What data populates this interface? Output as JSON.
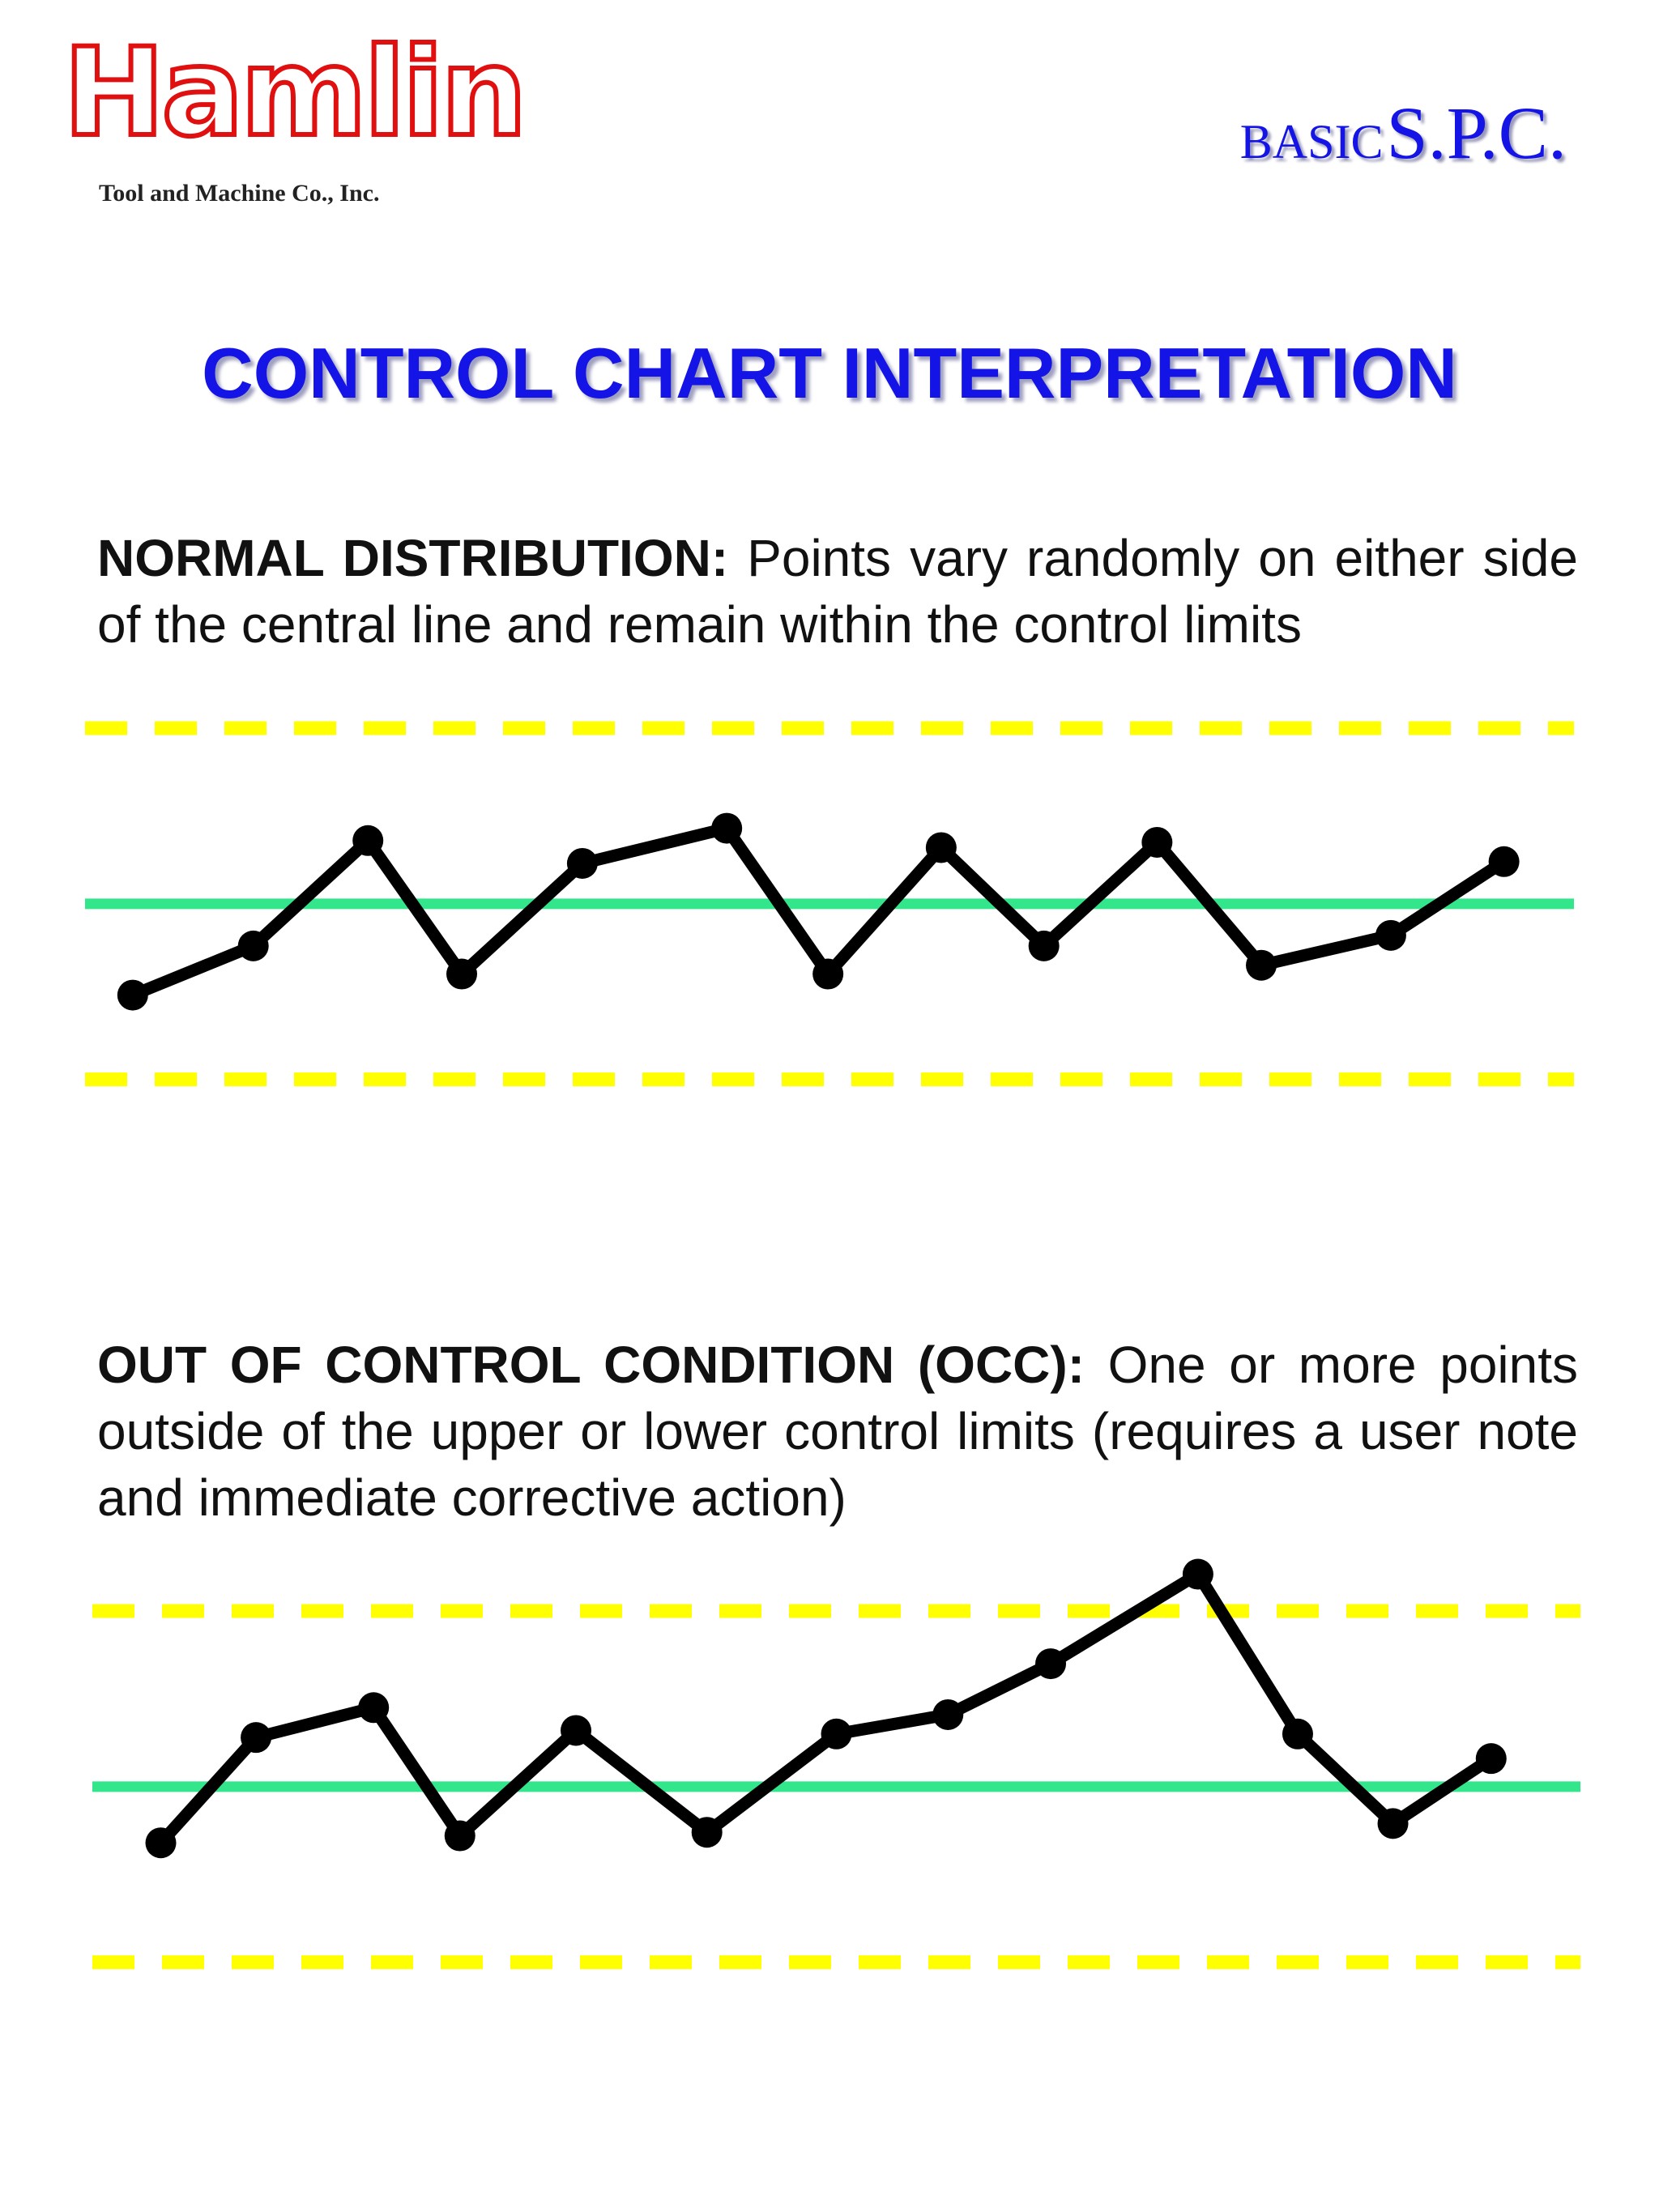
{
  "header": {
    "logo": "Hamlin",
    "company": "Tool and Machine Co., Inc.",
    "badge_small": "BASIC",
    "badge_large": "S.P.C."
  },
  "title": "CONTROL CHART INTERPRETATION",
  "sections": [
    {
      "label": "NORMAL DISTRIBUTION:",
      "text": "Points vary randomly on either side of the central line and remain within the control limits"
    },
    {
      "label": "OUT OF CONTROL CONDITION (OCC):",
      "text": "One or more points outside of the upper or lower control limits (requires a user note and immediate corrective action)"
    }
  ],
  "chart_data": [
    {
      "type": "line",
      "xlim": [
        0,
        100
      ],
      "ylim": [
        -1.2,
        1.3
      ],
      "x": [
        3.2,
        11.3,
        19.0,
        25.3,
        33.4,
        43.1,
        49.9,
        57.5,
        64.4,
        72.0,
        79.0,
        87.7,
        95.3
      ],
      "series": [
        {
          "color": "#000000",
          "values": [
            -0.52,
            -0.24,
            0.36,
            -0.4,
            0.23,
            0.43,
            -0.4,
            0.32,
            -0.24,
            0.35,
            -0.35,
            -0.18,
            0.24
          ]
        }
      ],
      "reference_lines": [
        {
          "value": 1,
          "color": "#ffff00",
          "dashed": true
        },
        {
          "value": 0,
          "color": "#33e68c",
          "dashed": false
        },
        {
          "value": -1,
          "color": "#ffff00",
          "dashed": true
        }
      ]
    },
    {
      "type": "line",
      "xlim": [
        0,
        100
      ],
      "ylim": [
        -1.2,
        1.3
      ],
      "x": [
        4.6,
        11.0,
        18.9,
        24.7,
        32.5,
        41.3,
        50.0,
        57.5,
        64.4,
        74.3,
        81.0,
        87.4,
        94.0
      ],
      "series": [
        {
          "color": "#000000",
          "values": [
            -0.32,
            0.28,
            0.45,
            -0.28,
            0.32,
            -0.26,
            0.3,
            0.41,
            0.7,
            1.21,
            0.3,
            -0.21,
            0.16
          ]
        }
      ],
      "reference_lines": [
        {
          "value": 1,
          "color": "#ffff00",
          "dashed": true
        },
        {
          "value": 0,
          "color": "#33e68c",
          "dashed": false
        },
        {
          "value": -1,
          "color": "#ffff00",
          "dashed": true
        }
      ]
    }
  ]
}
